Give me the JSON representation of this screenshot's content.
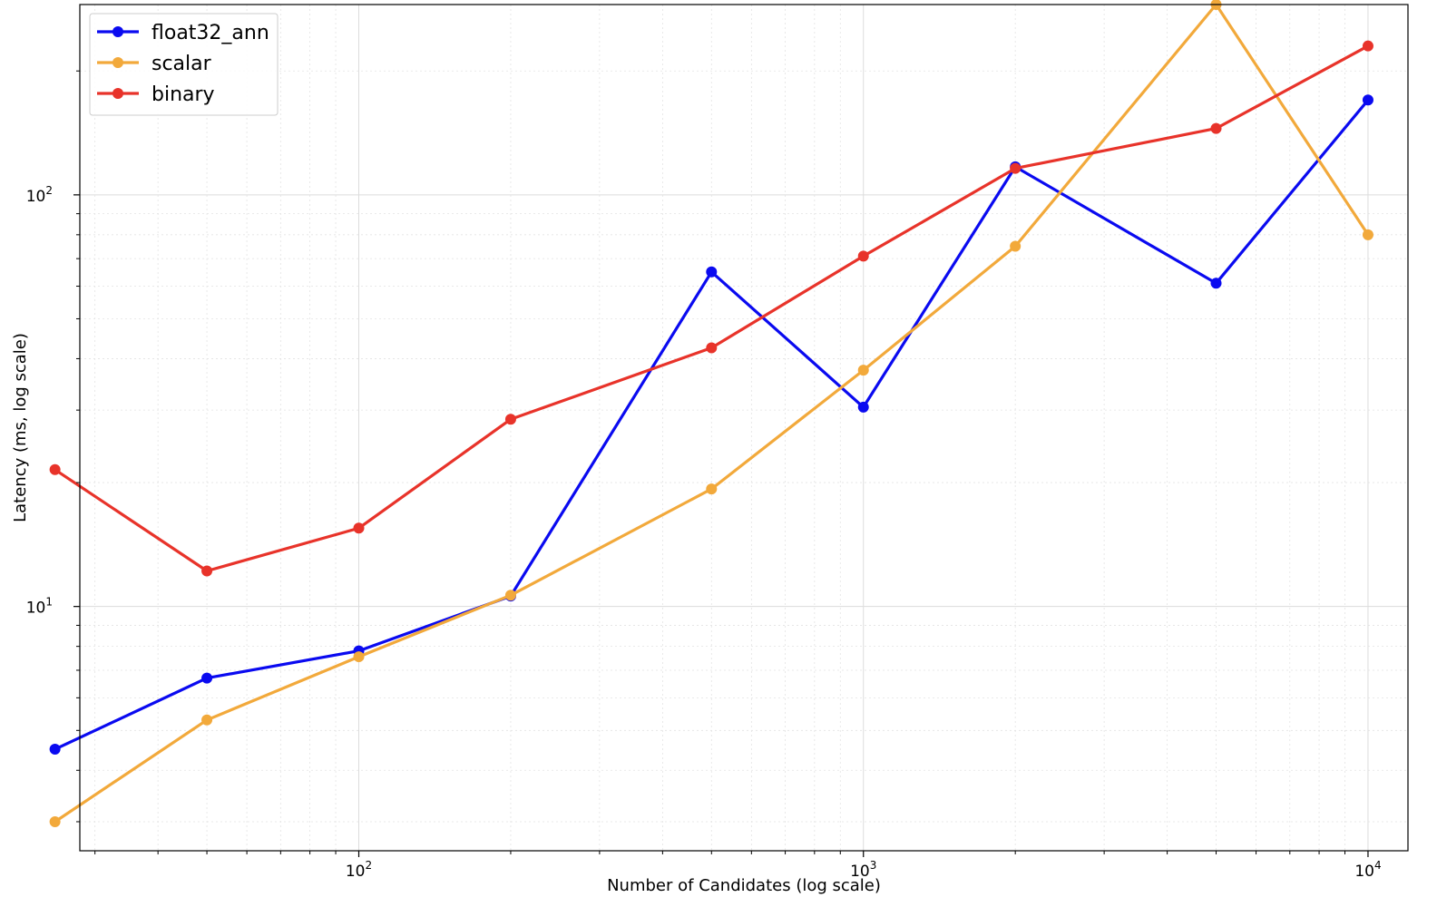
{
  "chart_data": {
    "type": "line",
    "xlabel": "Number of Candidates (log scale)",
    "ylabel": "Latency (ms, log scale)",
    "xscale": "log",
    "yscale": "log",
    "xlim": [
      28,
      12000
    ],
    "ylim": [
      2.55,
      290
    ],
    "grid": true,
    "legend_position": "top-left",
    "x_ticks": [
      {
        "value": 100,
        "base": "10",
        "exp": "2"
      },
      {
        "value": 1000,
        "base": "10",
        "exp": "3"
      },
      {
        "value": 10000,
        "base": "10",
        "exp": "4"
      }
    ],
    "y_ticks": [
      {
        "value": 10,
        "base": "10",
        "exp": "1"
      },
      {
        "value": 100,
        "base": "10",
        "exp": "2"
      }
    ],
    "x": [
      25,
      50,
      100,
      200,
      500,
      1000,
      2000,
      5000,
      10000
    ],
    "series": [
      {
        "name": "float32_ann",
        "color": "#0a0af0",
        "values": [
          4.5,
          6.7,
          7.8,
          10.6,
          65,
          30.5,
          117,
          61,
          170
        ]
      },
      {
        "name": "scalar",
        "color": "#f2a93b",
        "values": [
          3.0,
          5.3,
          7.55,
          10.65,
          19.3,
          37.5,
          75,
          290,
          80
        ]
      },
      {
        "name": "binary",
        "color": "#e8332a",
        "values": [
          21.5,
          12.2,
          15.5,
          28.5,
          42.5,
          71,
          116,
          145,
          230
        ]
      }
    ]
  }
}
